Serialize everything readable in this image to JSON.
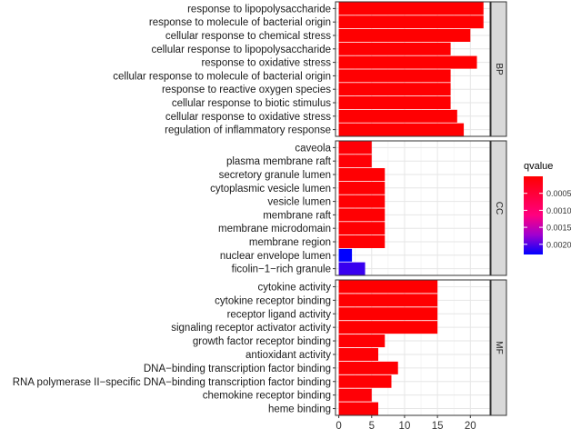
{
  "chart_data": {
    "type": "bar",
    "orientation": "horizontal",
    "xlim": [
      -0.5,
      23
    ],
    "x_ticks": [
      0,
      5,
      10,
      15,
      20
    ],
    "x_tick_labels": [
      "0",
      "5",
      "10",
      "15",
      "20"
    ],
    "grid": true,
    "legend_position": "right",
    "color_scale": {
      "title": "qvalue",
      "low_color": "#ff0000",
      "high_color": "#0000ff",
      "min": 0,
      "max": 0.0023,
      "ticks": [
        0.0005,
        0.001,
        0.0015,
        0.002
      ],
      "tick_labels": [
        "0.0005",
        "0.0010",
        "0.0015",
        "0.0020"
      ]
    },
    "facets": [
      {
        "label": "BP",
        "categories": [
          "response to lipopolysaccharide",
          "response to molecule of bacterial origin",
          "cellular response to chemical stress",
          "cellular response to lipopolysaccharide",
          "response to oxidative stress",
          "cellular response to molecule of bacterial origin",
          "response to reactive oxygen species",
          "cellular response to biotic stimulus",
          "cellular response to oxidative stress",
          "regulation of inflammatory response"
        ],
        "values": [
          22,
          22,
          20,
          17,
          21,
          17,
          17,
          17,
          18,
          19
        ],
        "qvalues": [
          1e-05,
          1e-05,
          1e-05,
          2e-05,
          1e-05,
          2e-05,
          2e-05,
          2e-05,
          2e-05,
          2e-05
        ]
      },
      {
        "label": "CC",
        "categories": [
          "caveola",
          "plasma membrane raft",
          "secretory granule lumen",
          "cytoplasmic vesicle lumen",
          "vesicle lumen",
          "membrane raft",
          "membrane microdomain",
          "membrane region",
          "nuclear envelope lumen",
          "ficolin−1−rich granule"
        ],
        "values": [
          5,
          5,
          7,
          7,
          7,
          7,
          7,
          7,
          2,
          4
        ],
        "qvalues": [
          5e-05,
          5e-05,
          3e-05,
          3e-05,
          3e-05,
          3e-05,
          3e-05,
          3e-05,
          0.0023,
          0.0021
        ]
      },
      {
        "label": "MF",
        "categories": [
          "cytokine activity",
          "cytokine receptor binding",
          "receptor ligand activity",
          "signaling receptor activator activity",
          "growth factor receptor binding",
          "antioxidant activity",
          "DNA−binding transcription factor binding",
          "RNA polymerase II−specific DNA−binding transcription factor binding",
          "chemokine receptor binding",
          "heme binding"
        ],
        "values": [
          15,
          15,
          15,
          15,
          7,
          6,
          9,
          8,
          5,
          6
        ],
        "qvalues": [
          1e-05,
          1e-05,
          1e-05,
          1e-05,
          3e-05,
          4e-05,
          3e-05,
          3e-05,
          5e-05,
          4e-05
        ]
      }
    ]
  }
}
